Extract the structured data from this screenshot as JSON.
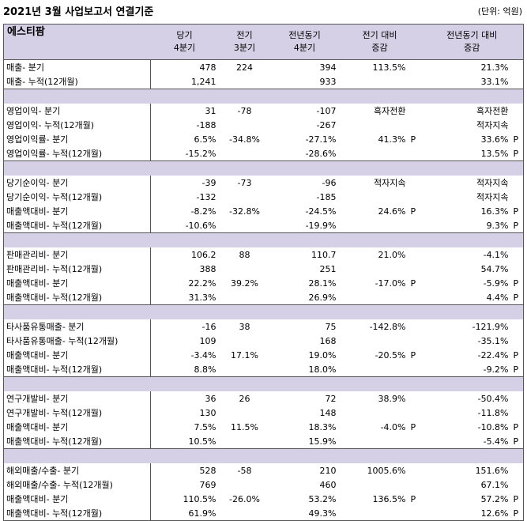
{
  "title": "2021년 3월 사업보고서 연결기준",
  "unit": "(단위: 억원)",
  "header": {
    "company": "에스티팜",
    "col1": [
      "당기",
      "4분기"
    ],
    "col2": [
      "전기",
      "3분기"
    ],
    "col3": [
      "전년동기",
      "4분기"
    ],
    "col4": [
      "전기 대비",
      "증감"
    ],
    "col5": [
      "전년동기 대비",
      "증감"
    ]
  },
  "groups": [
    {
      "rows": [
        {
          "label": "매출- 분기",
          "cur": "478",
          "prev": "224",
          "yoy": "394",
          "qoq": "113.5%",
          "qoq_p": "",
          "yoyc": "21.3%",
          "yoyc_p": ""
        },
        {
          "label": "매출- 누적(12개월)",
          "cur": "1,241",
          "prev": "",
          "yoy": "933",
          "qoq": "",
          "qoq_p": "",
          "yoyc": "33.1%",
          "yoyc_p": ""
        }
      ]
    },
    {
      "rows": [
        {
          "label": "영업이익- 분기",
          "cur": "31",
          "prev": "-78",
          "yoy": "-107",
          "qoq": "흑자전환",
          "qoq_p": "",
          "yoyc": "흑자전환",
          "yoyc_p": ""
        },
        {
          "label": "영업이익- 누적(12개월)",
          "cur": "-188",
          "prev": "",
          "yoy": "-267",
          "qoq": "",
          "qoq_p": "",
          "yoyc": "적자지속",
          "yoyc_p": ""
        },
        {
          "label": "영업이익률- 분기",
          "cur": "6.5%",
          "prev": "-34.8%",
          "yoy": "-27.1%",
          "qoq": "41.3%",
          "qoq_p": "P",
          "yoyc": "33.6%",
          "yoyc_p": "P"
        },
        {
          "label": "영업이익률- 누적(12개월)",
          "cur": "-15.2%",
          "prev": "",
          "yoy": "-28.6%",
          "qoq": "",
          "qoq_p": "",
          "yoyc": "13.5%",
          "yoyc_p": "P"
        }
      ]
    },
    {
      "rows": [
        {
          "label": "당기순이익- 분기",
          "cur": "-39",
          "prev": "-73",
          "yoy": "-96",
          "qoq": "적자지속",
          "qoq_p": "",
          "yoyc": "적자지속",
          "yoyc_p": ""
        },
        {
          "label": "당기순이익- 누적(12개월)",
          "cur": "-132",
          "prev": "",
          "yoy": "-185",
          "qoq": "",
          "qoq_p": "",
          "yoyc": "적자지속",
          "yoyc_p": ""
        },
        {
          "label": "매출액대비- 분기",
          "cur": "-8.2%",
          "prev": "-32.8%",
          "yoy": "-24.5%",
          "qoq": "24.6%",
          "qoq_p": "P",
          "yoyc": "16.3%",
          "yoyc_p": "P"
        },
        {
          "label": "매출액대비- 누적(12개월)",
          "cur": "-10.6%",
          "prev": "",
          "yoy": "-19.9%",
          "qoq": "",
          "qoq_p": "",
          "yoyc": "9.3%",
          "yoyc_p": "P"
        }
      ]
    },
    {
      "rows": [
        {
          "label": "판매관리비- 분기",
          "cur": "106.2",
          "prev": "88",
          "yoy": "110.7",
          "qoq": "21.0%",
          "qoq_p": "",
          "yoyc": "-4.1%",
          "yoyc_p": ""
        },
        {
          "label": "판매관리비- 누적(12개월)",
          "cur": "388",
          "prev": "",
          "yoy": "251",
          "qoq": "",
          "qoq_p": "",
          "yoyc": "54.7%",
          "yoyc_p": ""
        },
        {
          "label": "매출액대비- 분기",
          "cur": "22.2%",
          "prev": "39.2%",
          "yoy": "28.1%",
          "qoq": "-17.0%",
          "qoq_p": "P",
          "yoyc": "-5.9%",
          "yoyc_p": "P"
        },
        {
          "label": "매출액대비- 누적(12개월)",
          "cur": "31.3%",
          "prev": "",
          "yoy": "26.9%",
          "qoq": "",
          "qoq_p": "",
          "yoyc": "4.4%",
          "yoyc_p": "P"
        }
      ]
    },
    {
      "rows": [
        {
          "label": "타사품유통매출- 분기",
          "cur": "-16",
          "prev": "38",
          "yoy": "75",
          "qoq": "-142.8%",
          "qoq_p": "",
          "yoyc": "-121.9%",
          "yoyc_p": ""
        },
        {
          "label": "타사품유통매출- 누적(12개월)",
          "cur": "109",
          "prev": "",
          "yoy": "168",
          "qoq": "",
          "qoq_p": "",
          "yoyc": "-35.1%",
          "yoyc_p": ""
        },
        {
          "label": "매출액대비- 분기",
          "cur": "-3.4%",
          "prev": "17.1%",
          "yoy": "19.0%",
          "qoq": "-20.5%",
          "qoq_p": "P",
          "yoyc": "-22.4%",
          "yoyc_p": "P"
        },
        {
          "label": "매출액대비- 누적(12개월)",
          "cur": "8.8%",
          "prev": "",
          "yoy": "18.0%",
          "qoq": "",
          "qoq_p": "",
          "yoyc": "-9.2%",
          "yoyc_p": "P"
        }
      ]
    },
    {
      "rows": [
        {
          "label": "연구개발비- 분기",
          "cur": "36",
          "prev": "26",
          "yoy": "72",
          "qoq": "38.9%",
          "qoq_p": "",
          "yoyc": "-50.4%",
          "yoyc_p": ""
        },
        {
          "label": "연구개발비- 누적(12개월)",
          "cur": "130",
          "prev": "",
          "yoy": "148",
          "qoq": "",
          "qoq_p": "",
          "yoyc": "-11.8%",
          "yoyc_p": ""
        },
        {
          "label": "매출액대비- 분기",
          "cur": "7.5%",
          "prev": "11.5%",
          "yoy": "18.3%",
          "qoq": "-4.0%",
          "qoq_p": "P",
          "yoyc": "-10.8%",
          "yoyc_p": "P"
        },
        {
          "label": "매출액대비- 누적(12개월)",
          "cur": "10.5%",
          "prev": "",
          "yoy": "15.9%",
          "qoq": "",
          "qoq_p": "",
          "yoyc": "-5.4%",
          "yoyc_p": "P"
        }
      ]
    },
    {
      "rows": [
        {
          "label": "해외매출/수출- 분기",
          "cur": "528",
          "prev": "-58",
          "yoy": "210",
          "qoq": "1005.6%",
          "qoq_p": "",
          "yoyc": "151.6%",
          "yoyc_p": ""
        },
        {
          "label": "해외매출/수출- 누적(12개월)",
          "cur": "769",
          "prev": "",
          "yoy": "460",
          "qoq": "",
          "qoq_p": "",
          "yoyc": "67.1%",
          "yoyc_p": ""
        },
        {
          "label": "매출액대비- 분기",
          "cur": "110.5%",
          "prev": "-26.0%",
          "yoy": "53.2%",
          "qoq": "136.5%",
          "qoq_p": "P",
          "yoyc": "57.2%",
          "yoyc_p": "P"
        },
        {
          "label": "매출액대비- 누적(12개월)",
          "cur": "61.9%",
          "prev": "",
          "yoy": "49.3%",
          "qoq": "",
          "qoq_p": "",
          "yoyc": "12.6%",
          "yoyc_p": "P"
        }
      ]
    }
  ]
}
